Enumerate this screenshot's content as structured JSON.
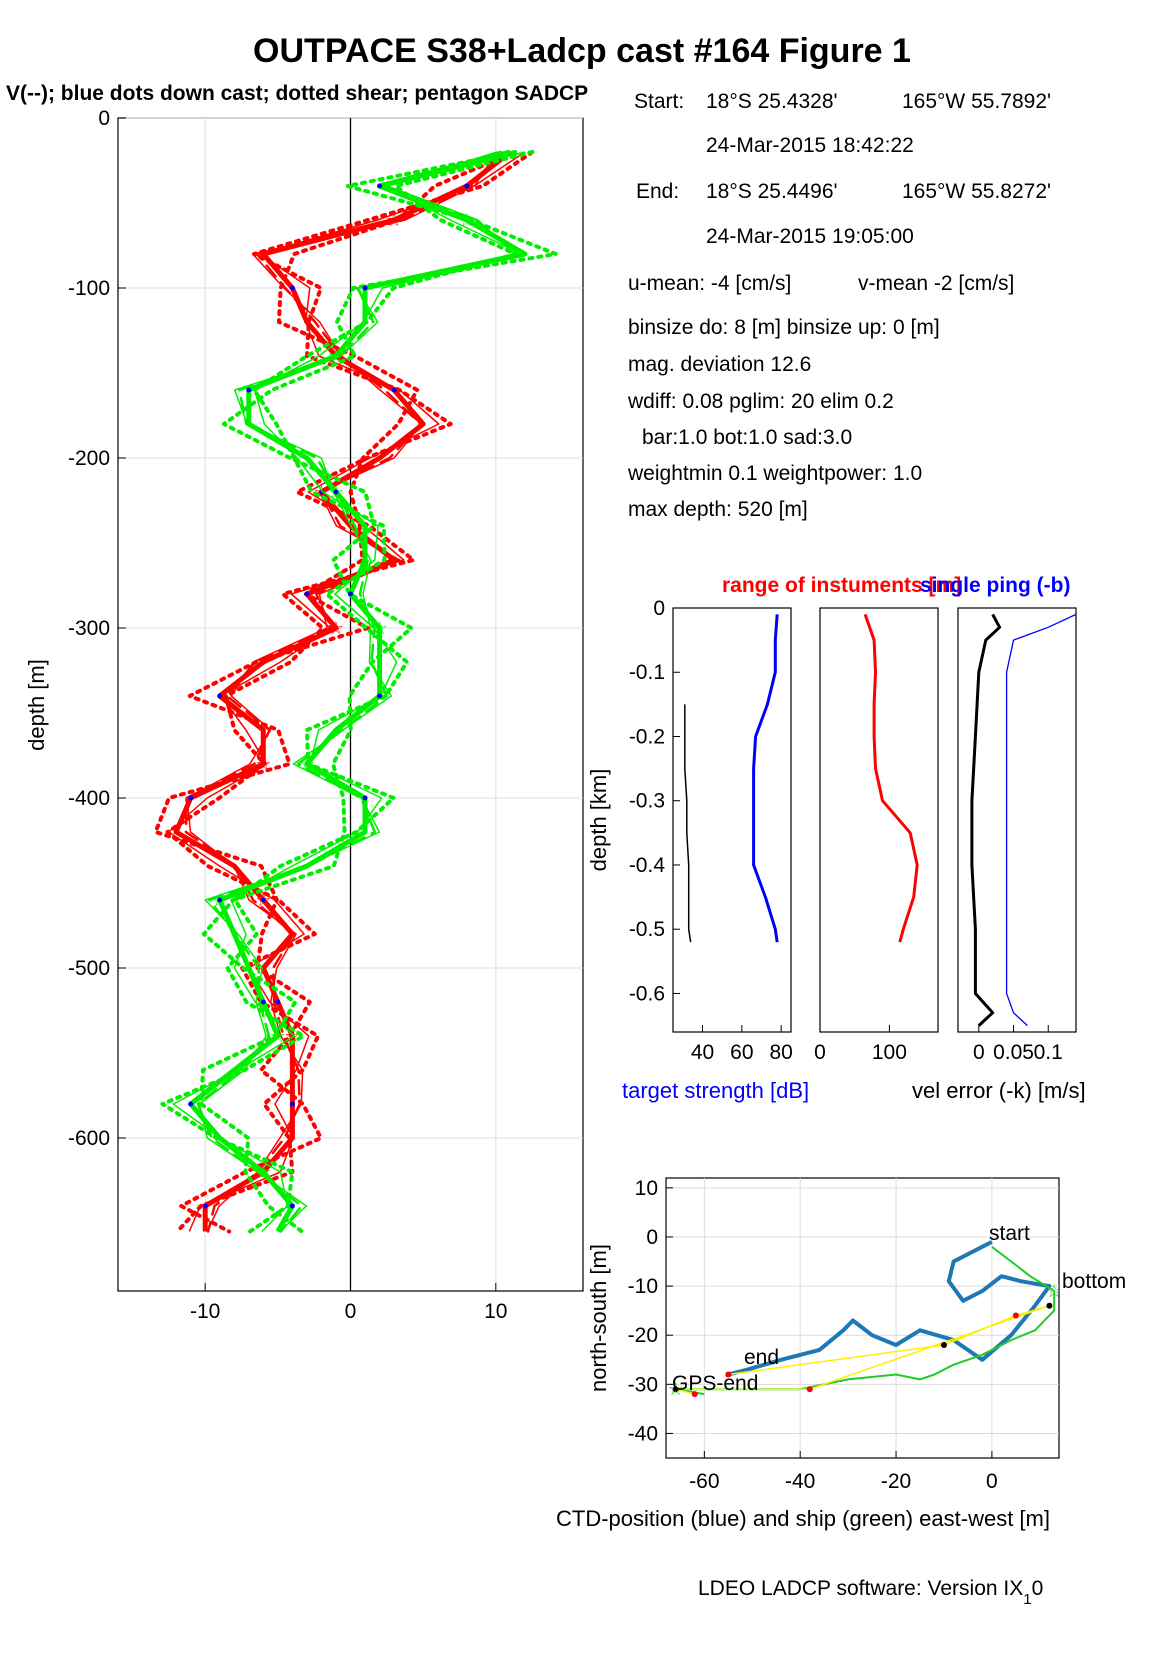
{
  "figure": {
    "title": "OUTPACE S38+Ladcp cast #164  Figure 1",
    "subtitle": "V(--); blue dots down cast; dotted shear; pentagon SADCP",
    "footer": "LDEO LADCP software: Version IX",
    "footer_sub": "1",
    "footer_tail": "0"
  },
  "info": {
    "start_label": "Start:",
    "start_lat": "18°S 25.4328'",
    "start_lon": "165°W 55.7892'",
    "start_time": "24-Mar-2015 18:42:22",
    "end_label": "End:",
    "end_lat": "18°S 25.4496'",
    "end_lon": "165°W 55.8272'",
    "end_time": "24-Mar-2015 19:05:00",
    "umean": "u-mean:  -4 [cm/s]",
    "vmean": "v-mean  -2 [cm/s]",
    "binsize": "binsize do: 8 [m]  binsize up:  0 [m]",
    "magdev": "mag. deviation 12.6",
    "wdiff": "wdiff: 0.08  pglim: 20  elim 0.2",
    "bar": "bar:1.0 bot:1.0 sad:3.0",
    "weight": "weightmin 0.1  weightpower: 1.0",
    "maxdepth": "max depth: 520 [m]"
  },
  "labels": {
    "range_title": "range of instuments [m]",
    "single_ping": "single ping (-b)",
    "target_strength": "target strength [dB]",
    "vel_error": "vel error (-k) [m/s]",
    "depth_km": "depth [km]",
    "depth_m": "depth [m]",
    "ns": "north-south [m]",
    "ew": "CTD-position (blue) and ship (green) east-west [m]",
    "start": "start",
    "bottom": "bottom",
    "end": "end",
    "gps_end": "GPS-end"
  },
  "colors": {
    "u": "#ff0000",
    "v": "#00ee00",
    "dots": "#0000ff",
    "ctd": "#1f77b4",
    "ship": "#22cc22",
    "link": "#ffee00"
  },
  "chart_data": [
    {
      "type": "line",
      "title": "",
      "xlabel": "",
      "ylabel": "depth [m]",
      "xlim": [
        -16,
        16
      ],
      "ylim": [
        -690,
        0
      ],
      "xticks": [
        -10,
        0,
        10
      ],
      "yticks": [
        0,
        -100,
        -200,
        -300,
        -400,
        -500,
        -600
      ],
      "grid": true,
      "depth": [
        -20,
        -40,
        -60,
        -80,
        -100,
        -120,
        -140,
        -160,
        -180,
        -200,
        -220,
        -240,
        -260,
        -280,
        -300,
        -320,
        -340,
        -360,
        -380,
        -400,
        -420,
        -440,
        -460,
        -480,
        -500,
        -520,
        -540,
        -560,
        -580,
        -600,
        -620,
        -640,
        -655
      ],
      "series": [
        {
          "name": "u",
          "values": [
            11,
            8,
            3,
            -6,
            -4,
            -3,
            -1,
            3,
            5,
            2,
            -2,
            0,
            3,
            -3,
            -1,
            -6,
            -9,
            -6,
            -6,
            -11,
            -12,
            -8,
            -6,
            -4,
            -6,
            -5,
            -4,
            -4,
            -4,
            -4,
            -6,
            -10,
            -10
          ]
        },
        {
          "name": "v",
          "values": [
            11,
            2,
            8,
            12,
            1,
            1,
            -1,
            -7,
            -7,
            -3,
            -1,
            1,
            1,
            0,
            2,
            2,
            2,
            -1,
            -3,
            1,
            1,
            -3,
            -9,
            -8,
            -7,
            -6,
            -5,
            -8,
            -11,
            -9,
            -6,
            -4,
            -5
          ]
        }
      ]
    },
    {
      "type": "line",
      "title": "range of instuments [m]",
      "xlabel": "target strength [dB]",
      "ylabel": "depth [km]",
      "xlim": [
        25,
        85
      ],
      "ylim": [
        -0.66,
        0
      ],
      "xticks": [
        40,
        60,
        80
      ],
      "yticks": [
        0,
        -0.1,
        -0.2,
        -0.3,
        -0.4,
        -0.5,
        -0.6
      ],
      "depth": [
        -0.01,
        -0.05,
        -0.1,
        -0.15,
        -0.2,
        -0.25,
        -0.3,
        -0.35,
        -0.4,
        -0.45,
        -0.5,
        -0.52
      ],
      "series": [
        {
          "name": "target strength down",
          "values": [
            78,
            77,
            77,
            73,
            67,
            66,
            66,
            66,
            66,
            72,
            77,
            78
          ]
        },
        {
          "name": "target strength up",
          "values": [
            null,
            null,
            null,
            31,
            31,
            31,
            32,
            32,
            33,
            33,
            33,
            34
          ]
        }
      ]
    },
    {
      "type": "line",
      "xlim": [
        0,
        170
      ],
      "xticks": [
        0,
        100
      ],
      "depth": [
        -0.01,
        -0.05,
        -0.1,
        -0.15,
        -0.2,
        -0.25,
        -0.3,
        -0.35,
        -0.4,
        -0.45,
        -0.5,
        -0.52
      ],
      "series": [
        {
          "name": "range",
          "values": [
            65,
            78,
            80,
            78,
            78,
            80,
            90,
            130,
            140,
            135,
            120,
            115
          ]
        }
      ]
    },
    {
      "type": "line",
      "title": "single ping (-b)",
      "xlabel": "vel error (-k) [m/s]",
      "xlim": [
        -0.03,
        0.14
      ],
      "xticks": [
        0,
        0.05,
        0.1
      ],
      "xticklabels": [
        "0",
        "0.05",
        "0.1"
      ],
      "depth": [
        -0.01,
        -0.03,
        -0.05,
        -0.1,
        -0.2,
        -0.3,
        -0.4,
        -0.5,
        -0.6,
        -0.63,
        -0.65
      ],
      "series": [
        {
          "name": "vel error",
          "values": [
            0.02,
            0.03,
            0.01,
            0.0,
            -0.005,
            -0.01,
            -0.01,
            -0.005,
            -0.005,
            0.02,
            0.0
          ]
        },
        {
          "name": "single ping",
          "values": [
            0.14,
            0.1,
            0.05,
            0.04,
            0.04,
            0.04,
            0.04,
            0.04,
            0.04,
            0.05,
            0.07
          ]
        }
      ]
    },
    {
      "type": "line",
      "xlabel": "CTD-position (blue) and ship (green) east-west [m]",
      "ylabel": "north-south [m]",
      "xlim": [
        -68,
        14
      ],
      "ylim": [
        -45,
        12
      ],
      "xticks": [
        -60,
        -40,
        -20,
        0
      ],
      "yticks": [
        10,
        0,
        -10,
        -20,
        -30,
        -40
      ],
      "grid": true,
      "series": [
        {
          "name": "CTD-position",
          "x": [
            0,
            -4,
            -8,
            -9,
            -6,
            -2,
            2,
            6,
            12,
            9,
            4,
            -2,
            -8,
            -15,
            -20,
            -25,
            -29,
            -31,
            -36,
            -44,
            -51,
            -55
          ],
          "y": [
            -1,
            -3,
            -5,
            -9,
            -13,
            -11,
            -8,
            -9,
            -10,
            -14,
            -20,
            -25,
            -21,
            -19,
            -22,
            -20,
            -17,
            -19,
            -23,
            -25,
            -27,
            -28
          ]
        },
        {
          "name": "ship",
          "x": [
            0,
            4,
            8,
            13,
            13,
            9,
            4,
            -2,
            -8,
            -12,
            -15,
            -20,
            -30,
            -40,
            -50,
            -62,
            -66,
            -60
          ],
          "y": [
            -2,
            -5,
            -8,
            -11,
            -15,
            -19,
            -21,
            -24,
            -26,
            -28,
            -29,
            -28,
            -29,
            -31,
            -31,
            -31,
            -31,
            -32
          ]
        },
        {
          "name": "link",
          "x": [
            -55,
            -10,
            5,
            12,
            -38,
            -66,
            -62
          ],
          "y": [
            -28,
            -22,
            -16,
            -14,
            -31,
            -31,
            -32
          ]
        }
      ]
    }
  ]
}
